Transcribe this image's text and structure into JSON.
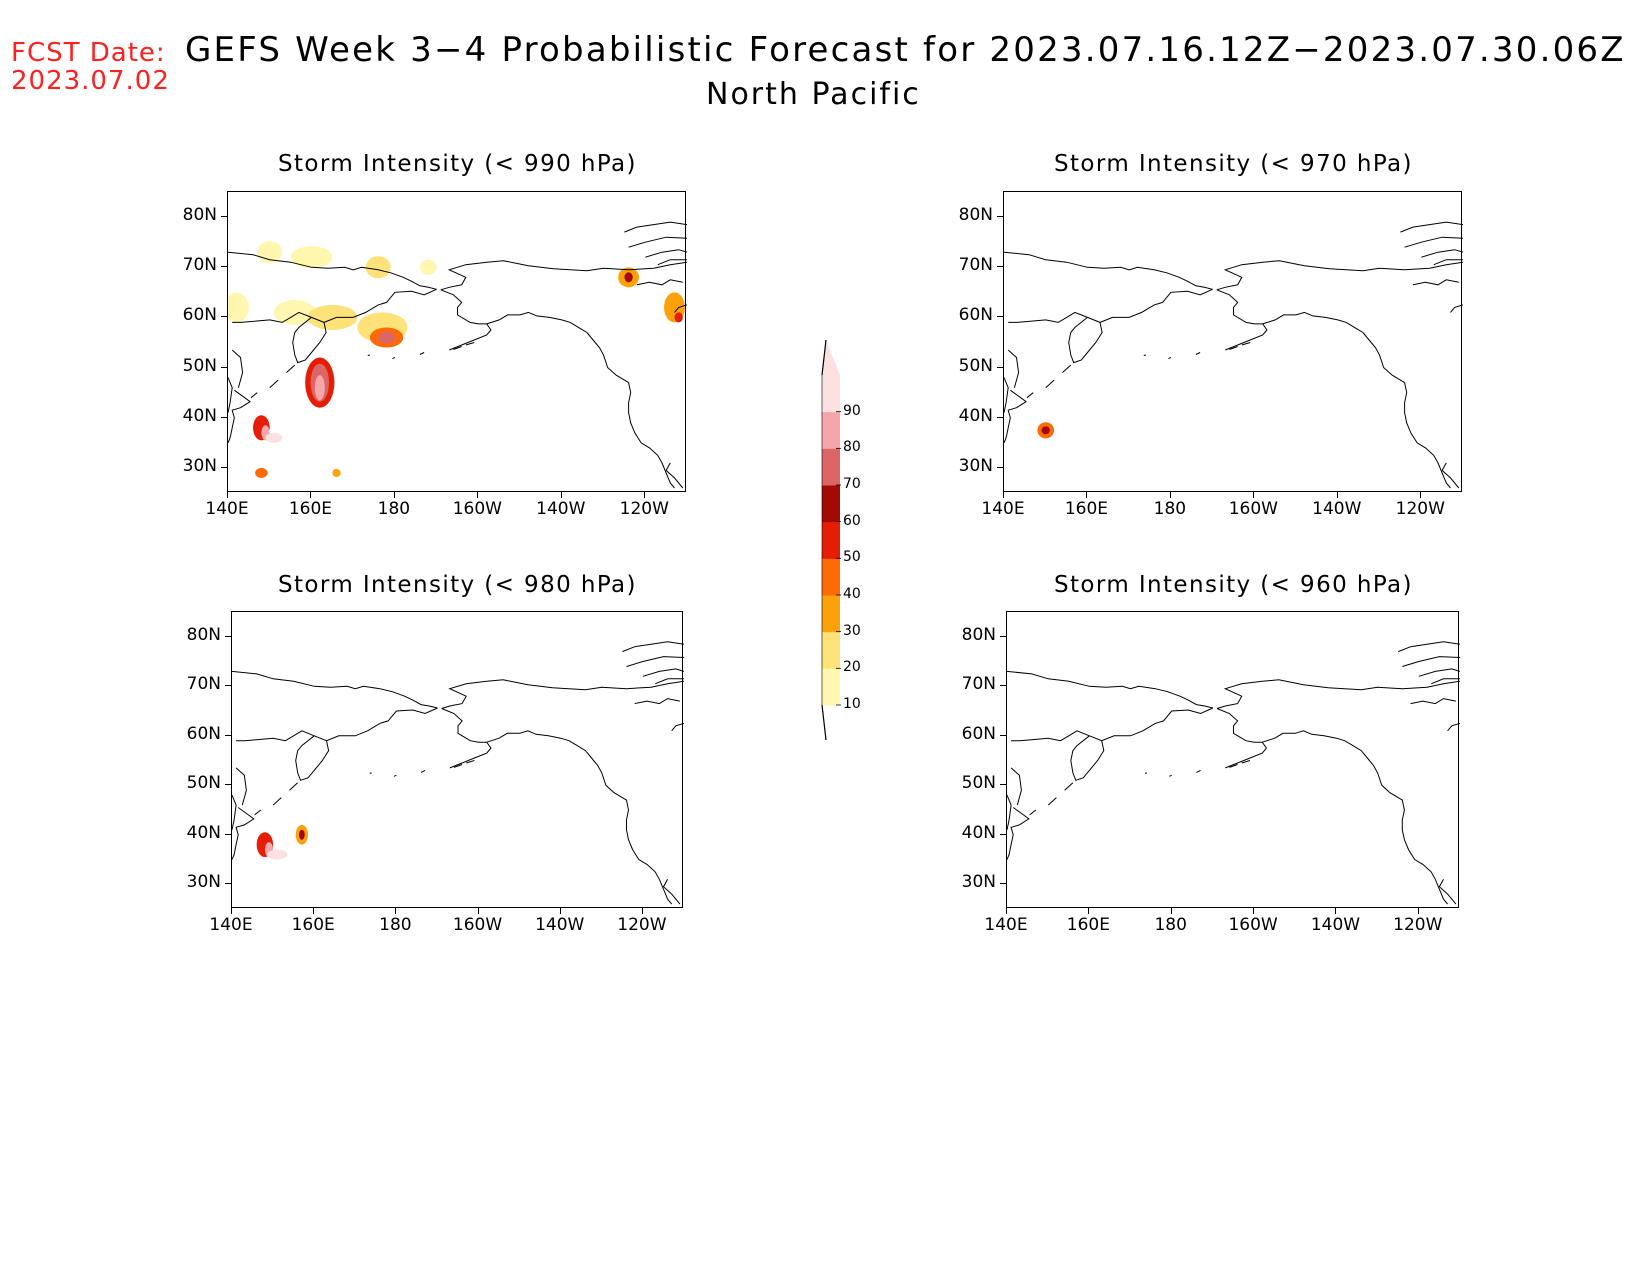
{
  "header": {
    "fcst_label": "FCST Date:",
    "fcst_date": "2023.07.02",
    "title": "GEFS Week 3−4 Probabilistic Forecast for 2023.07.16.12Z−2023.07.30.06Z",
    "subtitle": "North Pacific"
  },
  "axes": {
    "lat_labels": [
      "80N",
      "70N",
      "60N",
      "50N",
      "40N",
      "30N"
    ],
    "lon_labels": [
      "140E",
      "160E",
      "180",
      "160W",
      "140W",
      "120W"
    ]
  },
  "panels": [
    {
      "id": "p990",
      "title": "Storm Intensity (< 990 hPa)"
    },
    {
      "id": "p970",
      "title": "Storm Intensity (< 970 hPa)"
    },
    {
      "id": "p980",
      "title": "Storm Intensity (< 980 hPa)"
    },
    {
      "id": "p960",
      "title": "Storm Intensity (< 960 hPa)"
    }
  ],
  "colorbar": {
    "levels": [
      "10",
      "20",
      "30",
      "40",
      "50",
      "60",
      "70",
      "80",
      "90"
    ],
    "colors": [
      "#fff7b0",
      "#fde27a",
      "#fba20a",
      "#fd6a06",
      "#e51d05",
      "#a30a04",
      "#dc6666",
      "#f4a6aa",
      "#fde0e2"
    ]
  }
}
